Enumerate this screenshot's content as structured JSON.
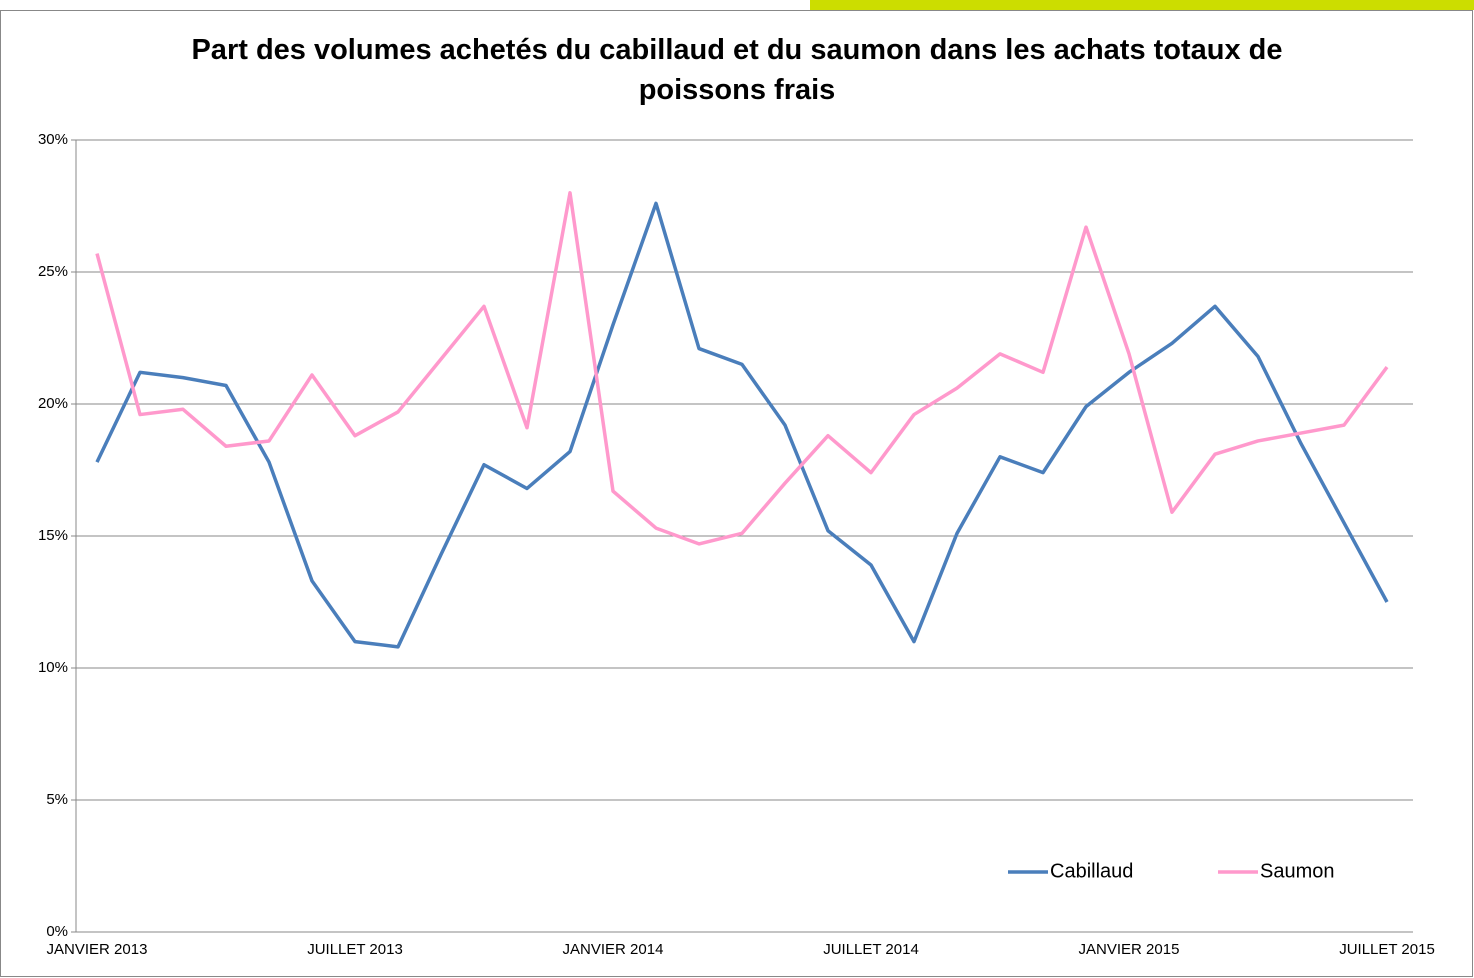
{
  "chart_data": {
    "type": "line",
    "title": "Part des volumes achetés du cabillaud et du saumon dans les achats totaux de poissons frais",
    "categories": [
      "JANVIER  2013",
      null,
      null,
      null,
      null,
      null,
      "JUILLET  2013",
      null,
      null,
      null,
      null,
      null,
      "JANVIER  2014",
      null,
      null,
      null,
      null,
      null,
      "JUILLET  2014",
      null,
      null,
      null,
      null,
      null,
      "JANVIER  2015",
      null,
      null,
      null,
      null,
      null,
      "JUILLET  2015"
    ],
    "series": [
      {
        "name": "Cabillaud",
        "color": "#4a7ebb",
        "values": [
          17.8,
          21.2,
          21.0,
          20.7,
          17.8,
          13.3,
          11.0,
          10.8,
          14.3,
          17.7,
          16.8,
          18.2,
          23.0,
          27.6,
          22.1,
          21.5,
          19.2,
          15.2,
          13.9,
          11.0,
          15.1,
          18.0,
          17.4,
          19.9,
          21.2,
          22.3,
          23.7,
          21.8,
          18.5,
          15.5,
          12.5
        ]
      },
      {
        "name": "Saumon",
        "color": "#ff99cc",
        "values": [
          25.7,
          19.6,
          19.8,
          18.4,
          18.6,
          21.1,
          18.8,
          19.7,
          21.7,
          23.7,
          19.1,
          28.0,
          16.7,
          15.3,
          14.7,
          15.1,
          17.0,
          18.8,
          17.4,
          19.6,
          20.6,
          21.9,
          21.2,
          26.7,
          21.9,
          15.9,
          18.1,
          18.6,
          18.9,
          19.2,
          21.4
        ]
      }
    ],
    "ylim": [
      0,
      30
    ],
    "yticks": [
      {
        "value": 0,
        "label": "0%"
      },
      {
        "value": 5,
        "label": "5%"
      },
      {
        "value": 10,
        "label": "10%"
      },
      {
        "value": 15,
        "label": "15%"
      },
      {
        "value": 20,
        "label": "20%"
      },
      {
        "value": 25,
        "label": "25%"
      },
      {
        "value": 30,
        "label": "30%"
      }
    ],
    "grid": true,
    "legend": "bottom-right"
  }
}
